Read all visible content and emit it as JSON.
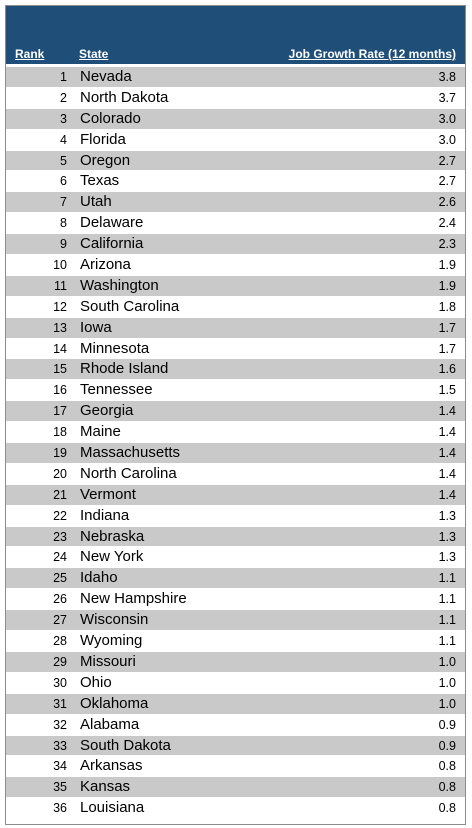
{
  "table": {
    "headers": {
      "rank": "Rank",
      "state": "State",
      "rate": "Job Growth Rate (12 months)"
    },
    "rows": [
      {
        "rank": "1",
        "state": "Nevada",
        "rate": "3.8"
      },
      {
        "rank": "2",
        "state": "North Dakota",
        "rate": "3.7"
      },
      {
        "rank": "3",
        "state": "Colorado",
        "rate": "3.0"
      },
      {
        "rank": "4",
        "state": "Florida",
        "rate": "3.0"
      },
      {
        "rank": "5",
        "state": "Oregon",
        "rate": "2.7"
      },
      {
        "rank": "6",
        "state": "Texas",
        "rate": "2.7"
      },
      {
        "rank": "7",
        "state": "Utah",
        "rate": "2.6"
      },
      {
        "rank": "8",
        "state": "Delaware",
        "rate": "2.4"
      },
      {
        "rank": "9",
        "state": "California",
        "rate": "2.3"
      },
      {
        "rank": "10",
        "state": "Arizona",
        "rate": "1.9"
      },
      {
        "rank": "11",
        "state": "Washington",
        "rate": "1.9"
      },
      {
        "rank": "12",
        "state": "South Carolina",
        "rate": "1.8"
      },
      {
        "rank": "13",
        "state": "Iowa",
        "rate": "1.7"
      },
      {
        "rank": "14",
        "state": "Minnesota",
        "rate": "1.7"
      },
      {
        "rank": "15",
        "state": "Rhode Island",
        "rate": "1.6"
      },
      {
        "rank": "16",
        "state": "Tennessee",
        "rate": "1.5"
      },
      {
        "rank": "17",
        "state": "Georgia",
        "rate": "1.4"
      },
      {
        "rank": "18",
        "state": "Maine",
        "rate": "1.4"
      },
      {
        "rank": "19",
        "state": "Massachusetts",
        "rate": "1.4"
      },
      {
        "rank": "20",
        "state": "North Carolina",
        "rate": "1.4"
      },
      {
        "rank": "21",
        "state": "Vermont",
        "rate": "1.4"
      },
      {
        "rank": "22",
        "state": "Indiana",
        "rate": "1.3"
      },
      {
        "rank": "23",
        "state": "Nebraska",
        "rate": "1.3"
      },
      {
        "rank": "24",
        "state": "New York",
        "rate": "1.3"
      },
      {
        "rank": "25",
        "state": "Idaho",
        "rate": "1.1"
      },
      {
        "rank": "26",
        "state": "New Hampshire",
        "rate": "1.1"
      },
      {
        "rank": "27",
        "state": "Wisconsin",
        "rate": "1.1"
      },
      {
        "rank": "28",
        "state": "Wyoming",
        "rate": "1.1"
      },
      {
        "rank": "29",
        "state": "Missouri",
        "rate": "1.0"
      },
      {
        "rank": "30",
        "state": "Ohio",
        "rate": "1.0"
      },
      {
        "rank": "31",
        "state": "Oklahoma",
        "rate": "1.0"
      },
      {
        "rank": "32",
        "state": "Alabama",
        "rate": "0.9"
      },
      {
        "rank": "33",
        "state": "South Dakota",
        "rate": "0.9"
      },
      {
        "rank": "34",
        "state": "Arkansas",
        "rate": "0.8"
      },
      {
        "rank": "35",
        "state": "Kansas",
        "rate": "0.8"
      },
      {
        "rank": "36",
        "state": "Louisiana",
        "rate": "0.8"
      }
    ]
  },
  "colors": {
    "header_bg": "#1f4e79",
    "band_gray": "#c9c9c9",
    "band_white": "#ffffff"
  }
}
